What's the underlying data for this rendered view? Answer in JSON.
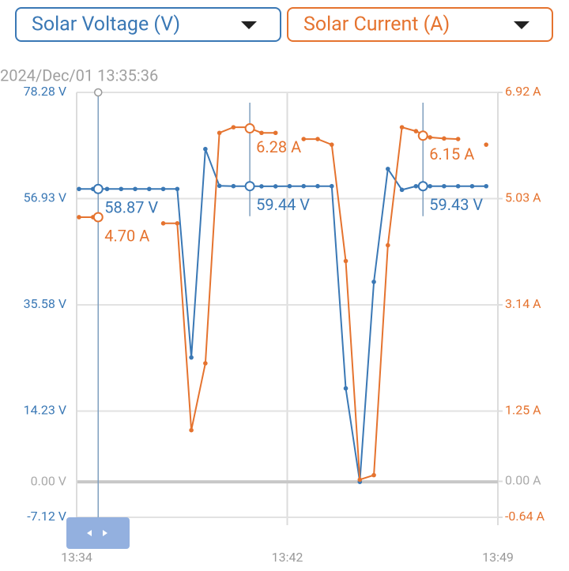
{
  "chart_data": {
    "type": "line",
    "x": [
      "13:34:55",
      "13:35:25",
      "13:35:55",
      "13:36:25",
      "13:36:55",
      "13:37:25",
      "13:37:55",
      "13:38:25",
      "13:38:55",
      "13:39:25",
      "13:39:55",
      "13:40:25",
      "13:40:55",
      "13:41:25",
      "13:41:55",
      "13:42:25",
      "13:42:55",
      "13:43:25",
      "13:43:55",
      "13:44:25",
      "13:44:55",
      "13:45:25",
      "13:45:55",
      "13:46:25",
      "13:46:55",
      "13:47:25",
      "13:47:55",
      "13:48:25",
      "13:48:55",
      "13:49:25"
    ],
    "series": [
      {
        "name": "Solar Voltage (V)",
        "color": "#3a78b5",
        "axis": "y",
        "values": [
          58.87,
          58.87,
          58.87,
          58.87,
          58.87,
          58.87,
          58.87,
          58.87,
          25.0,
          66.9,
          59.5,
          59.44,
          59.44,
          59.4,
          59.4,
          59.44,
          59.44,
          59.44,
          59.44,
          18.8,
          0.0,
          40.2,
          62.9,
          58.7,
          59.43,
          59.43,
          59.43,
          59.43,
          59.43,
          59.43
        ]
      },
      {
        "name": "Solar Current (A)",
        "color": "#e5732f",
        "axis": "y2",
        "values": [
          4.7,
          4.7,
          null,
          null,
          null,
          null,
          4.59,
          4.59,
          0.91,
          2.1,
          6.2,
          6.3,
          6.3,
          6.2,
          6.2,
          null,
          6.09,
          6.09,
          5.99,
          3.92,
          0.03,
          0.11,
          4.2,
          6.3,
          6.23,
          6.12,
          6.1,
          6.09,
          null,
          5.99
        ]
      }
    ],
    "xlim": [
      "13:34:50",
      "13:49:50"
    ],
    "xticks": [
      {
        "value": "13:34:50",
        "label": "13:34"
      },
      {
        "value": "13:42:20",
        "label": "13:42"
      },
      {
        "value": "13:49:50",
        "label": "13:49"
      }
    ],
    "ylim": [
      -7.12,
      78.28
    ],
    "yticks": [
      {
        "value": -7.12,
        "label": "-7.12 V"
      },
      {
        "value": 0,
        "label": "0.00 V"
      },
      {
        "value": 14.23,
        "label": "14.23 V"
      },
      {
        "value": 35.58,
        "label": "35.58 V"
      },
      {
        "value": 56.93,
        "label": "56.93 V"
      },
      {
        "value": 78.28,
        "label": "78.28 V"
      }
    ],
    "y2lim": [
      -0.64,
      6.92
    ],
    "y2ticks": [
      {
        "value": -0.64,
        "label": "-0.64 A"
      },
      {
        "value": 0,
        "label": "0.00 A"
      },
      {
        "value": 1.25,
        "label": "1.25 A"
      },
      {
        "value": 3.14,
        "label": "3.14 A"
      },
      {
        "value": 5.03,
        "label": "5.03 A"
      },
      {
        "value": 6.92,
        "label": "6.92 A"
      }
    ],
    "grid": true,
    "cursors": [
      {
        "time": "13:35:36",
        "label": "2024/Dec/01 13:35:36",
        "voltage": 58.87,
        "voltage_label": "58.87 V",
        "current": 4.7,
        "current_label": "4.70 A"
      },
      {
        "time": "13:41:00",
        "voltage": 59.44,
        "voltage_label": "59.44 V",
        "current": 6.28,
        "current_label": "6.28 A"
      },
      {
        "time": "13:47:10",
        "voltage": 59.43,
        "voltage_label": "59.43 V",
        "current": 6.15,
        "current_label": "6.15 A"
      }
    ]
  }
}
